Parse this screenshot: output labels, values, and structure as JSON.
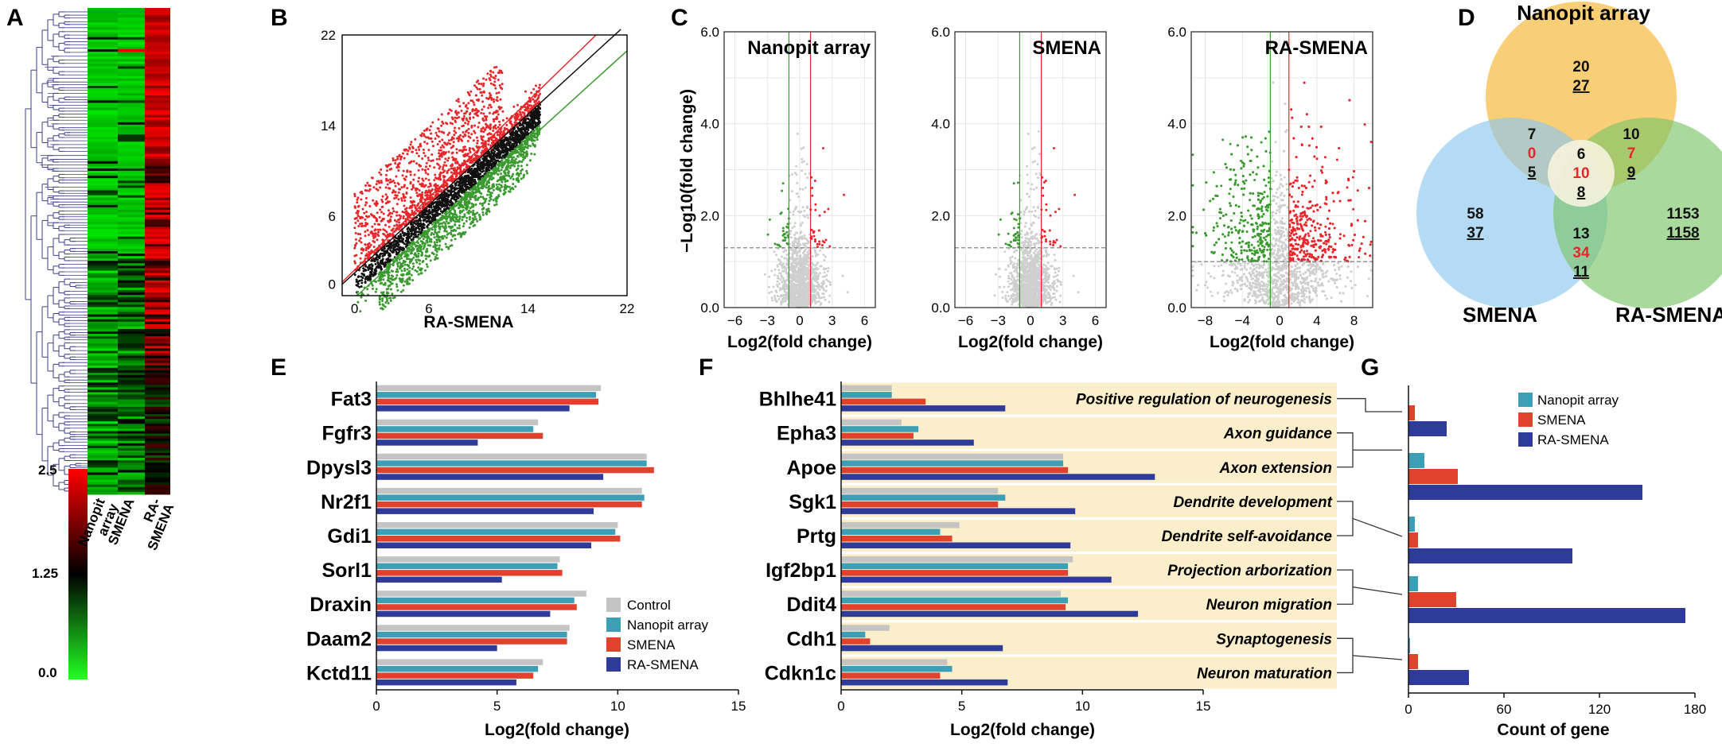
{
  "colors": {
    "control": "#c4c4c4",
    "nanopit": "#3d9fb5",
    "smena": "#e0422d",
    "ra_smena": "#2e3b99",
    "up": "#e8262a",
    "down": "#3a9a2f",
    "ns": "#cfcfcf",
    "term_bg": "#fbeecb",
    "venn_nano": "#f7c55f",
    "venn_smena": "#8ec8ee",
    "venn_ra": "#7cc46a",
    "highlight": "#e8262a"
  },
  "panel_labels": {
    "a": "A",
    "b": "B",
    "c": "C",
    "d": "D",
    "e": "E",
    "f": "F",
    "g": "G"
  },
  "heatmap": {
    "columns": [
      "Nanopit array",
      "SMENA",
      "RA-SMENA"
    ],
    "col_label_lines": [
      [
        "Nanopit",
        "array"
      ],
      [
        "SMENA"
      ],
      [
        "RA-",
        "SMENA"
      ]
    ],
    "colorbar_ticks": [
      "2.5",
      "1.25",
      "0.0"
    ]
  },
  "chart_data": [
    {
      "panel": "B",
      "type": "scatter",
      "xlabel": "RA-SMENA",
      "ylabel": "",
      "xlim": [
        -1,
        22
      ],
      "ylim": [
        -1,
        22
      ],
      "xticks": [
        0,
        6,
        14,
        22
      ],
      "yticks": [
        0,
        6,
        14,
        22
      ]
    },
    {
      "panel": "C",
      "type": "scatter",
      "ylabel": "−Log10(fold change)",
      "xlabel": "Log2(fold change)",
      "ylim": [
        0,
        6
      ],
      "yticks": [
        "0.0",
        "2.0",
        "4.0",
        "6.0"
      ],
      "series": [
        {
          "name": "Nanopit array",
          "xlim": [
            -7,
            7
          ],
          "xticks": [
            -6,
            -3,
            0,
            3,
            6
          ],
          "threshold_y": 1.3
        },
        {
          "name": "SMENA",
          "xlim": [
            -7,
            7
          ],
          "xticks": [
            -6,
            -3,
            0,
            3,
            6
          ],
          "threshold_y": 1.3
        },
        {
          "name": "RA-SMENA",
          "xlim": [
            -9.5,
            10
          ],
          "xticks": [
            -8,
            -4,
            0,
            4,
            8
          ],
          "threshold_y": 1.0
        }
      ]
    },
    {
      "panel": "D",
      "type": "venn",
      "sets": [
        "Nanopit array",
        "SMENA",
        "RA-SMENA"
      ],
      "regions": {
        "nanopit_only": [
          "20",
          "27"
        ],
        "smena_only": [
          "58",
          "37"
        ],
        "ra_only": [
          "1153",
          "1158"
        ],
        "nanopit_smena": [
          "7",
          "0",
          "5"
        ],
        "nanopit_ra": [
          "10",
          "7",
          "9"
        ],
        "smena_ra": [
          "13",
          "34",
          "11"
        ],
        "all": [
          "6",
          "10",
          "8"
        ]
      }
    },
    {
      "panel": "E",
      "type": "bar",
      "orientation": "horizontal",
      "xlabel": "Log2(fold change)",
      "xlim": [
        0,
        15
      ],
      "xticks": [
        0,
        5,
        10,
        15
      ],
      "categories": [
        "Fat3",
        "Fgfr3",
        "Dpysl3",
        "Nr2f1",
        "Gdi1",
        "Sorl1",
        "Draxin",
        "Daam2",
        "Kctd11"
      ],
      "series": [
        {
          "name": "Control",
          "values": [
            9.3,
            6.7,
            11.2,
            11.0,
            10.0,
            7.6,
            8.7,
            8.0,
            6.9
          ]
        },
        {
          "name": "Nanopit array",
          "values": [
            9.1,
            6.5,
            11.2,
            11.1,
            9.9,
            7.5,
            8.2,
            7.9,
            6.7
          ]
        },
        {
          "name": "SMENA",
          "values": [
            9.2,
            6.9,
            11.5,
            11.0,
            10.1,
            7.7,
            8.3,
            7.9,
            6.5
          ]
        },
        {
          "name": "RA-SMENA",
          "values": [
            8.0,
            4.2,
            9.4,
            9.0,
            8.9,
            5.2,
            7.2,
            5.0,
            5.8
          ]
        }
      ]
    },
    {
      "panel": "F",
      "type": "bar",
      "orientation": "horizontal",
      "xlabel": "Log2(fold change)",
      "xlim": [
        0,
        15
      ],
      "xticks": [
        0,
        5,
        10,
        15
      ],
      "categories": [
        "Bhlhe41",
        "Epha3",
        "Apoe",
        "Sgk1",
        "Prtg",
        "Igf2bp1",
        "Ddit4",
        "Cdh1",
        "Cdkn1c"
      ],
      "terms": [
        "Positive regulation of neurogenesis",
        "Axon guidance",
        "Axon extension",
        "Dendrite development",
        "Dendrite self-avoidance",
        "Projection arborization",
        "Neuron migration",
        "Synaptogenesis",
        "Neuron maturation"
      ],
      "series": [
        {
          "name": "Control",
          "values": [
            2.1,
            2.5,
            9.2,
            6.5,
            4.9,
            9.6,
            9.1,
            2.0,
            4.4
          ]
        },
        {
          "name": "Nanopit array",
          "values": [
            2.1,
            3.2,
            9.2,
            6.8,
            4.1,
            9.4,
            9.4,
            1.0,
            4.6
          ]
        },
        {
          "name": "SMENA",
          "values": [
            3.5,
            3.0,
            9.4,
            6.5,
            4.6,
            9.4,
            9.3,
            1.2,
            4.1
          ]
        },
        {
          "name": "RA-SMENA",
          "values": [
            6.8,
            5.5,
            13.0,
            9.7,
            9.5,
            11.2,
            12.3,
            6.7,
            6.9
          ]
        }
      ]
    },
    {
      "panel": "G",
      "type": "bar",
      "orientation": "horizontal",
      "xlabel": "Count of gene",
      "xlim": [
        0,
        180
      ],
      "xticks": [
        0,
        60,
        120,
        180
      ],
      "categories": [
        "Positive regulation of neurogenesis",
        "Axon guidance / Axon extension",
        "Dendrite development / Dendrite self-avoidance",
        "Projection arborization / Neuron migration",
        "Synaptogenesis / Neuron maturation"
      ],
      "series": [
        {
          "name": "Nanopit array",
          "values": [
            0,
            10,
            4,
            6,
            1
          ]
        },
        {
          "name": "SMENA",
          "values": [
            4,
            31,
            6,
            30,
            6
          ]
        },
        {
          "name": "RA-SMENA",
          "values": [
            24,
            147,
            103,
            174,
            38
          ]
        }
      ]
    }
  ]
}
